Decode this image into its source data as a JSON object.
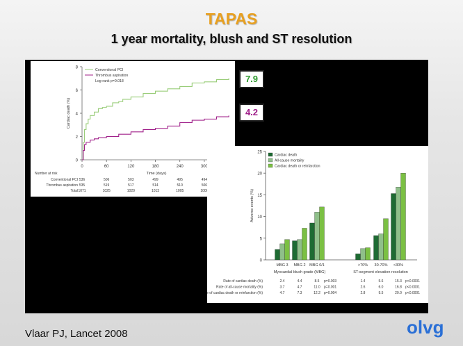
{
  "slide": {
    "title": "TAPAS",
    "subtitle": "1 year mortality, blush and ST resolution",
    "citation": "Vlaar PJ, Lancet 2008",
    "logo_text": "olvg"
  },
  "colors": {
    "title": "#e8a020",
    "conventional": "#9acd7a",
    "thrombus": "#a0208a",
    "dark_green": "#1e6b33",
    "mid_green": "#8fbf8a",
    "light_green": "#7bc043",
    "highlight_green": "#2e9a2e",
    "logo": "#2a6fd6"
  },
  "highlights": {
    "conventional": "7.9",
    "thrombus": "4.2"
  },
  "chart_data": [
    {
      "type": "line",
      "title": "",
      "xlabel": "Time (days)",
      "ylabel": "Cardiac death (%)",
      "xlim": [
        0,
        365
      ],
      "ylim": [
        0,
        8
      ],
      "xticks": [
        0,
        60,
        120,
        180,
        240,
        300,
        360
      ],
      "yticks": [
        0,
        2,
        4,
        6,
        8
      ],
      "legend": [
        "Conventional PCI",
        "Thrombus aspiration",
        "Log-rank p=0.018"
      ],
      "series": [
        {
          "name": "Conventional PCI",
          "x": [
            0,
            3,
            6,
            10,
            15,
            20,
            30,
            40,
            50,
            60,
            75,
            90,
            100,
            120,
            150,
            180,
            210,
            240,
            270,
            300,
            330,
            360
          ],
          "y": [
            0,
            1.5,
            2.6,
            3.1,
            3.5,
            3.8,
            4.1,
            4.4,
            4.5,
            4.6,
            4.9,
            5.0,
            5.2,
            5.4,
            5.7,
            5.9,
            6.1,
            6.3,
            6.6,
            6.7,
            6.9,
            7.0
          ]
        },
        {
          "name": "Thrombus aspiration",
          "x": [
            0,
            3,
            6,
            10,
            20,
            30,
            40,
            60,
            90,
            120,
            150,
            180,
            210,
            240,
            270,
            300,
            330,
            360
          ],
          "y": [
            0,
            0.8,
            1.3,
            1.5,
            1.7,
            1.8,
            1.9,
            2.0,
            2.2,
            2.4,
            2.6,
            2.7,
            2.9,
            3.2,
            3.4,
            3.5,
            3.7,
            3.8
          ]
        }
      ],
      "at_risk": {
        "header": "Number at risk",
        "rows": [
          {
            "label": "Conventional PCI",
            "values": [
              "536",
              "506",
              "503",
              "499",
              "495",
              "494",
              "489"
            ]
          },
          {
            "label": "Thrombus aspiration",
            "values": [
              "535",
              "519",
              "517",
              "514",
              "510",
              "506",
              "505"
            ]
          },
          {
            "label": "Total",
            "values": [
              "1071",
              "1025",
              "1020",
              "1013",
              "1005",
              "1000",
              "994"
            ]
          }
        ]
      }
    },
    {
      "type": "bar",
      "ylabel": "Adverse events (%)",
      "ylim": [
        0,
        25
      ],
      "yticks": [
        0,
        5,
        10,
        15,
        20,
        25
      ],
      "categories": [
        "MBG 3",
        "MBG 2",
        "MBG 0/1",
        ">70%",
        "30-70%",
        "<30%"
      ],
      "groups": [
        "Myocardial blush grade (MBG)",
        "ST-segment elevation resolution"
      ],
      "series": [
        {
          "name": "Cardiac death",
          "values": [
            2.4,
            4.4,
            8.5,
            1.4,
            5.6,
            15.3
          ]
        },
        {
          "name": "All-cause mortality",
          "values": [
            3.7,
            4.7,
            11.0,
            2.6,
            6.0,
            16.8
          ]
        },
        {
          "name": "Cardiac death or reinfarction",
          "values": [
            4.7,
            7.3,
            12.2,
            2.8,
            9.5,
            20.0
          ]
        }
      ],
      "table": {
        "rows": [
          {
            "label": "Rate of cardiac death (%)",
            "values": [
              "2.4",
              "4.4",
              "8.5",
              "1.4",
              "5.6",
              "15.3"
            ],
            "p": [
              "p=0.003",
              "p<0.0001"
            ]
          },
          {
            "label": "Rate of all-cause mortality (%)",
            "values": [
              "3.7",
              "4.7",
              "11.0",
              "2.6",
              "6.0",
              "16.8"
            ],
            "p": [
              "p=0.001",
              "p<0.0001"
            ]
          },
          {
            "label": "Rate of cardiac death or reinfarction (%)",
            "values": [
              "4.7",
              "7.3",
              "12.2",
              "2.8",
              "9.5",
              "20.0"
            ],
            "p": [
              "p=0.004",
              "p<0.0001"
            ]
          }
        ]
      }
    }
  ]
}
